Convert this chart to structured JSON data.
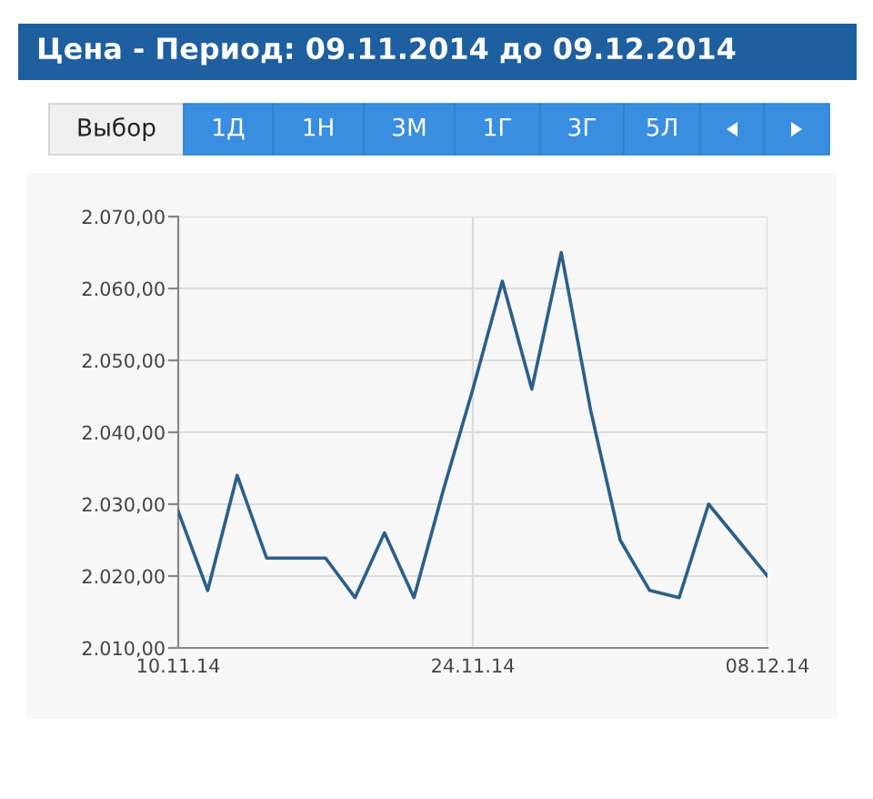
{
  "chart_data": {
    "type": "line",
    "title": "Цена - Период: 09.11.2014 до 09.12.2014",
    "annotations": [
      "Выбор",
      "1Д",
      "1Н",
      "3М",
      "1Г",
      "3Г",
      "5Л"
    ],
    "categories": [
      "10.11.14",
      null,
      null,
      null,
      null,
      null,
      null,
      null,
      null,
      null,
      "24.11.14",
      null,
      null,
      null,
      null,
      null,
      null,
      null,
      null,
      null,
      "08.12.14"
    ],
    "series": [
      {
        "color": "#2b5f8a",
        "values": [
          2029,
          2018,
          2034,
          2022.5,
          2022.5,
          2022.5,
          2017,
          2026,
          2017,
          2032,
          2046,
          2061,
          2046,
          2065,
          2043,
          2025,
          2018,
          2017,
          2030,
          2025,
          2020
        ]
      }
    ],
    "ylim": [
      2010,
      2070
    ],
    "yticks": [
      {
        "value": 2010,
        "label": "2.010,00"
      },
      {
        "value": 2020,
        "label": "2.020,00"
      },
      {
        "value": 2030,
        "label": "2.030,00"
      },
      {
        "value": 2040,
        "label": "2.040,00"
      },
      {
        "value": 2050,
        "label": "2.050,00"
      },
      {
        "value": 2060,
        "label": "2.060,00"
      },
      {
        "value": 2070,
        "label": "2.070,00"
      }
    ],
    "grid": true,
    "marker": "none",
    "line_style": "solid"
  }
}
